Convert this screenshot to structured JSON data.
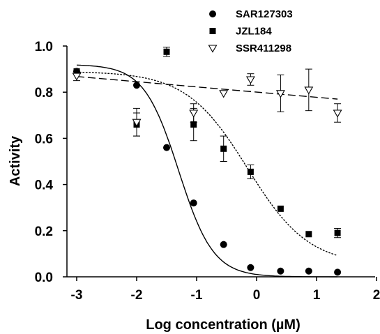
{
  "chart_data": {
    "type": "scatter",
    "xlabel": "Log concentration (µM)",
    "ylabel": "Activity",
    "xlim": [
      -3,
      2
    ],
    "ylim": [
      0,
      1.0
    ],
    "x_ticks": [
      "-3",
      "-2",
      "-1",
      "0",
      "1",
      "2"
    ],
    "y_ticks": [
      "0.0",
      "0.2",
      "0.4",
      "0.6",
      "0.8",
      "1.0"
    ],
    "grid": false,
    "legend_position": "top-right",
    "series": [
      {
        "name": "SAR127303",
        "marker": "circle",
        "line_style": "solid",
        "color": "#000000",
        "points": [
          {
            "x": -3.0,
            "y": 0.89,
            "err": 0.0
          },
          {
            "x": -2.0,
            "y": 0.83,
            "err": 0.0
          },
          {
            "x": -1.5,
            "y": 0.56,
            "err": 0.0
          },
          {
            "x": -1.05,
            "y": 0.32,
            "err": 0.0
          },
          {
            "x": -0.55,
            "y": 0.14,
            "err": 0.0
          },
          {
            "x": -0.1,
            "y": 0.04,
            "err": 0.0
          },
          {
            "x": 0.4,
            "y": 0.025,
            "err": 0.0
          },
          {
            "x": 0.87,
            "y": 0.025,
            "err": 0.0
          },
          {
            "x": 1.35,
            "y": 0.02,
            "err": 0.0
          }
        ],
        "fit": {
          "model": "sigmoid",
          "top": 0.92,
          "bottom": 0.0,
          "log_ec50": -1.3,
          "hill": 1.5
        }
      },
      {
        "name": "JZL184",
        "marker": "square",
        "line_style": "dotted",
        "color": "#000000",
        "points": [
          {
            "x": -3.0,
            "y": 0.89,
            "err": 0.0
          },
          {
            "x": -2.0,
            "y": 0.66,
            "err": 0.05
          },
          {
            "x": -1.5,
            "y": 0.975,
            "err": 0.02
          },
          {
            "x": -1.05,
            "y": 0.66,
            "err": 0.07
          },
          {
            "x": -0.55,
            "y": 0.555,
            "err": 0.055
          },
          {
            "x": -0.1,
            "y": 0.455,
            "err": 0.03
          },
          {
            "x": 0.4,
            "y": 0.295,
            "err": 0.0
          },
          {
            "x": 0.87,
            "y": 0.185,
            "err": 0.0
          },
          {
            "x": 1.35,
            "y": 0.19,
            "err": 0.02
          }
        ],
        "fit": {
          "model": "sigmoid",
          "top": 0.89,
          "bottom": 0.05,
          "log_ec50": -0.15,
          "hill": 0.85
        }
      },
      {
        "name": "SSR411298",
        "marker": "triangle-down-open",
        "line_style": "dashed",
        "color": "#000000",
        "points": [
          {
            "x": -3.0,
            "y": 0.87,
            "err": 0.02
          },
          {
            "x": -2.0,
            "y": 0.67,
            "err": 0.06
          },
          {
            "x": -1.05,
            "y": 0.71,
            "err": 0.04
          },
          {
            "x": -0.55,
            "y": 0.795,
            "err": 0.0
          },
          {
            "x": -0.1,
            "y": 0.855,
            "err": 0.025
          },
          {
            "x": 0.4,
            "y": 0.795,
            "err": 0.08
          },
          {
            "x": 0.87,
            "y": 0.81,
            "err": 0.09
          },
          {
            "x": 1.35,
            "y": 0.71,
            "err": 0.04
          }
        ],
        "fit": {
          "model": "linear",
          "x_start": -3.0,
          "x_end": 1.35,
          "y_start": 0.868,
          "y_end": 0.77
        }
      }
    ]
  }
}
